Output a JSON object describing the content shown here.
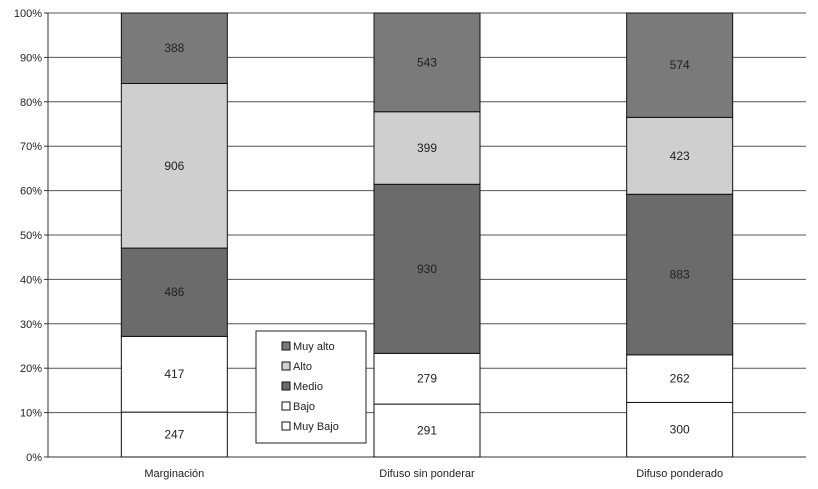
{
  "chart_data": {
    "type": "bar",
    "stacked": "percent",
    "categories": [
      "Marginación",
      "Difuso sin ponderar",
      "Difuso ponderado"
    ],
    "series": [
      {
        "name": "Muy Bajo",
        "values": [
          247,
          291,
          300
        ],
        "color": "#ffffff"
      },
      {
        "name": "Bajo",
        "values": [
          417,
          279,
          262
        ],
        "color": "#ffffff"
      },
      {
        "name": "Medio",
        "values": [
          486,
          930,
          883
        ],
        "color": "#6b6b6b"
      },
      {
        "name": "Alto",
        "values": [
          906,
          399,
          423
        ],
        "color": "#cfcfcf"
      },
      {
        "name": "Muy alto",
        "values": [
          388,
          543,
          574
        ],
        "color": "#7a7a7a"
      }
    ],
    "y_ticks": [
      "0%",
      "10%",
      "20%",
      "30%",
      "40%",
      "50%",
      "60%",
      "70%",
      "80%",
      "90%",
      "100%"
    ],
    "ylim": [
      0,
      100
    ],
    "grid": true,
    "legend": {
      "placement": "bottom-center",
      "order": [
        "Muy alto",
        "Alto",
        "Medio",
        "Bajo",
        "Muy Bajo"
      ]
    }
  }
}
